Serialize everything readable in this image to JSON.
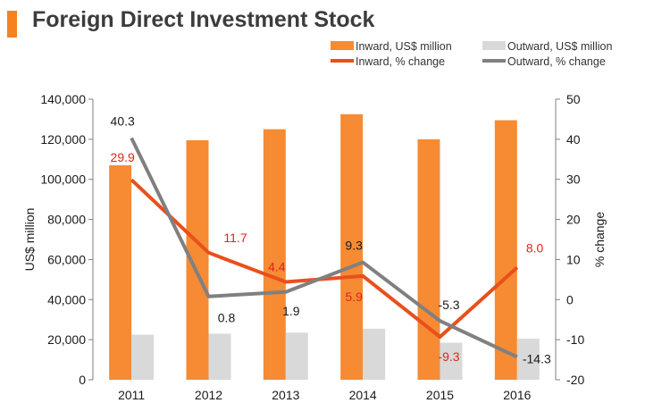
{
  "chart_data": {
    "type": "bar",
    "title": "Foreign Direct Investment Stock",
    "categories": [
      "2011",
      "2012",
      "2013",
      "2014",
      "2015",
      "2016"
    ],
    "ylabel": "US$ million",
    "ylabel_right": "% change",
    "ylim": [
      0,
      140000
    ],
    "ylim_right": [
      -20,
      50
    ],
    "yticks": [
      "0",
      "20,000",
      "40,000",
      "60,000",
      "80,000",
      "100,000",
      "120,000",
      "140,000"
    ],
    "yticks_right": [
      "-20",
      "-10",
      "0",
      "10",
      "20",
      "30",
      "40",
      "50"
    ],
    "series": [
      {
        "name": "Inward, US$ million",
        "kind": "bar",
        "axis": "left",
        "color": "#f68b33",
        "values": [
          107000,
          119500,
          125000,
          132500,
          120000,
          129500
        ]
      },
      {
        "name": "Outward, US$ million",
        "kind": "bar",
        "axis": "left",
        "color": "#d9d9d9",
        "values": [
          22500,
          23000,
          23500,
          25500,
          18500,
          20500
        ]
      },
      {
        "name": "Inward, % change",
        "kind": "line",
        "axis": "right",
        "color": "#e8501c",
        "values": [
          29.9,
          11.7,
          4.4,
          5.9,
          -9.3,
          8.0
        ],
        "labels": [
          "29.9",
          "11.7",
          "4.4",
          "5.9",
          "-9.3",
          "8.0"
        ],
        "label_color": "#e2231a"
      },
      {
        "name": "Outward, % change",
        "kind": "line",
        "axis": "right",
        "color": "#808080",
        "values": [
          40.3,
          0.8,
          1.9,
          9.3,
          -5.3,
          -14.3
        ],
        "labels": [
          "40.3",
          "0.8",
          "1.9",
          "9.3",
          "-5.3",
          "-14.3"
        ],
        "label_color": "#1a1a1a"
      }
    ],
    "legend_position": "top-right",
    "grid": false
  }
}
